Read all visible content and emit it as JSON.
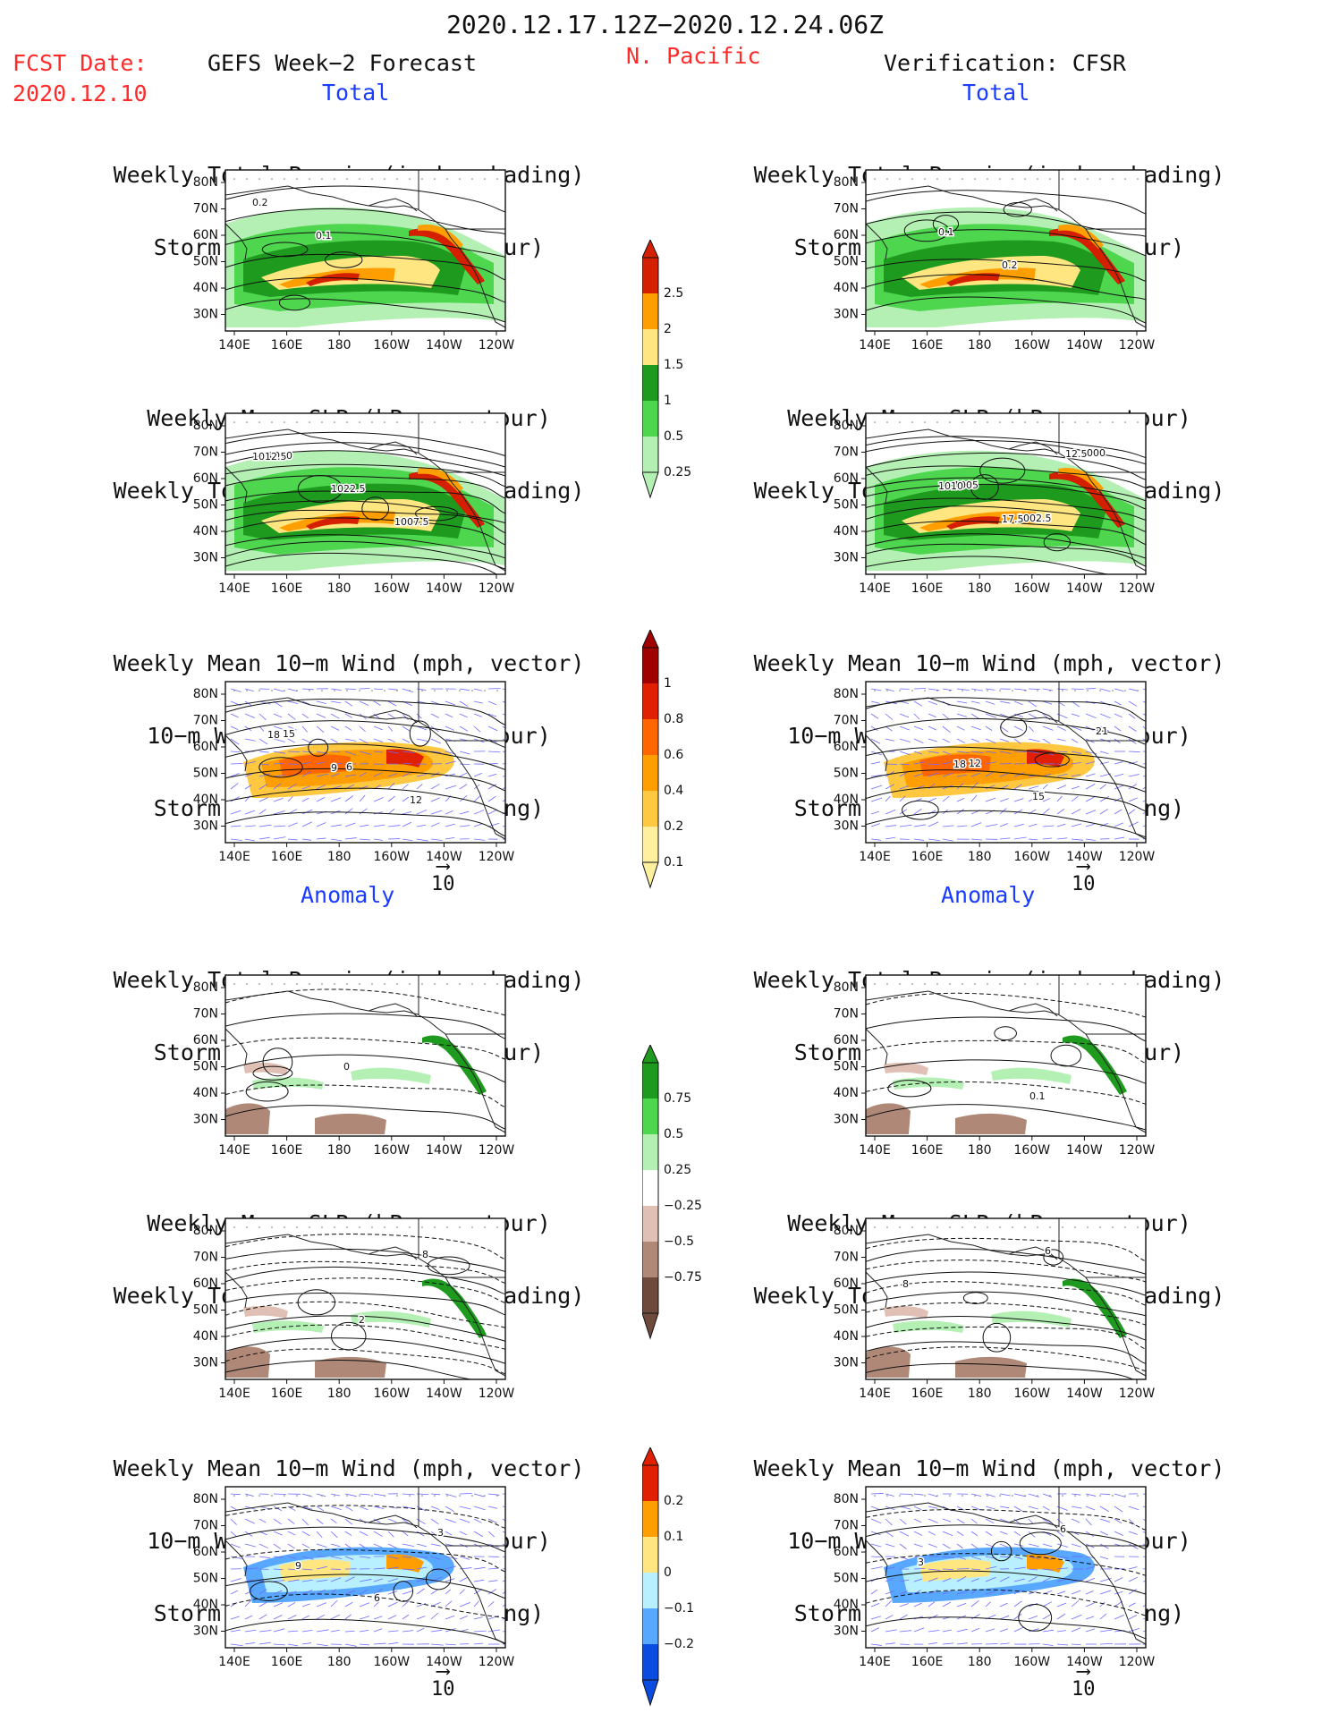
{
  "header": {
    "period": "2020.12.17.12Z−2020.12.24.06Z",
    "fcst_label": "FCST Date:",
    "fcst_date": "2020.12.10",
    "model": "GEFS Week−2 Forecast",
    "region": "N. Pacific",
    "verification": "Verification: CFSR"
  },
  "sections": {
    "total": "Total",
    "anomaly": "Anomaly"
  },
  "titles": {
    "precip_storm": [
      "Weekly Total Precip (inch, shading)",
      "Storm Track Density (contour)"
    ],
    "slp_precip": [
      "Weekly Mean SLP (hPa, contour)",
      "Weekly Total Precip (inch, shading)"
    ],
    "wind": [
      "Weekly Mean 10−m Wind (mph, vector)",
      "10−m Wind Speed (mph, contour)",
      "Storm Track Density (shading)"
    ]
  },
  "axes": {
    "lat_labels": [
      "80N",
      "70N",
      "60N",
      "50N",
      "40N",
      "30N"
    ],
    "lon_labels": [
      "140E",
      "160E",
      "180",
      "160W",
      "140W",
      "120W"
    ]
  },
  "vector_scale": "10",
  "colorbars": {
    "total_precip": {
      "labels": [
        "2.5",
        "2",
        "1.5",
        "1",
        "0.5",
        "0.25"
      ],
      "colors": [
        "#d42000",
        "#ff9e00",
        "#ffe680",
        "#1e9a1e",
        "#4fd64f",
        "#b4f0b4"
      ]
    },
    "total_density": {
      "labels": [
        "1",
        "0.8",
        "0.6",
        "0.4",
        "0.2",
        "0.1"
      ],
      "colors": [
        "#a00000",
        "#e02000",
        "#ff6600",
        "#ff9e00",
        "#ffc840",
        "#fff0a0"
      ]
    },
    "anom_precip": {
      "labels": [
        "0.75",
        "0.5",
        "0.25",
        "−0.25",
        "−0.5",
        "−0.75"
      ],
      "colors": [
        "#1e9a1e",
        "#4fd64f",
        "#b4f0b4",
        "#ffffff",
        "#e0c0b4",
        "#b08878",
        "#6e4a3c"
      ]
    },
    "anom_density": {
      "labels": [
        "0.2",
        "0.1",
        "0",
        "−0.1",
        "−0.2"
      ],
      "colors": [
        "#e02000",
        "#ff9e00",
        "#ffe680",
        "#b8f0ff",
        "#58a8ff",
        "#0a4be0"
      ]
    }
  },
  "panels": [
    {
      "id": "fc-total-precip",
      "contour_labels": [
        "0.2",
        "0.1"
      ]
    },
    {
      "id": "fc-total-slp",
      "contour_labels": [
        "1010",
        "1022.5",
        "1007.5",
        "1012.5"
      ]
    },
    {
      "id": "fc-total-wind",
      "contour_labels": [
        "15",
        "6",
        "12",
        "18",
        "9"
      ]
    },
    {
      "id": "obs-total-precip",
      "contour_labels": [
        "0.1",
        "0.2"
      ]
    },
    {
      "id": "obs-total-slp",
      "contour_labels": [
        "1005",
        "1002.5",
        "1000",
        "1010",
        "17.5",
        "12.5"
      ]
    },
    {
      "id": "obs-total-wind",
      "contour_labels": [
        "12",
        "15",
        "21",
        "18"
      ]
    },
    {
      "id": "fc-anom-precip",
      "contour_labels": [
        "0"
      ]
    },
    {
      "id": "fc-anom-slp",
      "contour_labels": [
        "2",
        "8"
      ]
    },
    {
      "id": "fc-anom-wind",
      "contour_labels": [
        "6",
        "3",
        "9"
      ]
    },
    {
      "id": "obs-anom-precip",
      "contour_labels": [
        "0.1"
      ]
    },
    {
      "id": "obs-anom-slp",
      "contour_labels": [
        "6",
        "8"
      ]
    },
    {
      "id": "obs-anom-wind",
      "contour_labels": [
        "6",
        "3"
      ]
    }
  ]
}
